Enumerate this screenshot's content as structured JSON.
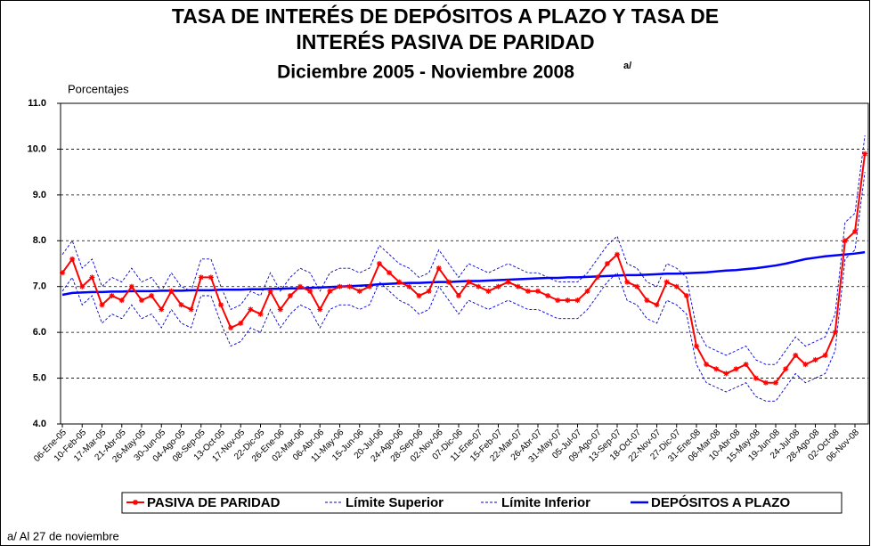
{
  "chart_data": {
    "type": "line",
    "title_lines": [
      "TASA DE INTERÉS DE DEPÓSITOS A PLAZO Y TASA DE",
      "INTERÉS PASIVA DE PARIDAD"
    ],
    "subtitle": "Diciembre 2005 - Noviembre 2008",
    "subtitle_note": "a/",
    "y_label": "Porcentajes",
    "footnote": "a/ Al 27 de noviembre",
    "categories": [
      "06-Ene-05",
      null,
      "10-Feb-05",
      null,
      "17-Mar-05",
      null,
      "21-Abr-05",
      null,
      "26-May-05",
      null,
      "30-Jun-05",
      null,
      "04-Ago-05",
      null,
      "08-Sep-05",
      null,
      "13-Oct-05",
      null,
      "17-Nov-05",
      null,
      "22-Dic-05",
      null,
      "26-Ene-06",
      null,
      "02-Mar-06",
      null,
      "06-Abr-06",
      null,
      "11-May-06",
      null,
      "15-Jun-06",
      null,
      "20-Jul-06",
      null,
      "24-Ago-06",
      null,
      "28-Sep-06",
      null,
      "02-Nov-06",
      null,
      "07-Dic-06",
      null,
      "11-Ene-07",
      null,
      "15-Feb-07",
      null,
      "22-Mar-07",
      null,
      "26-Abr-07",
      null,
      "31-May-07",
      null,
      "05-Jul-07",
      null,
      "09-Ago-07",
      null,
      "13-Sep-07",
      null,
      "18-Oct-07",
      null,
      "22-Nov-07",
      null,
      "27-Dic-07",
      null,
      "31-Ene-08",
      null,
      "06-Mar-08",
      null,
      "10-Abr-08",
      null,
      "15-May-08",
      null,
      "19-Jun-08",
      null,
      "24-Jul-08",
      null,
      "28-Ago-08",
      null,
      "02-Oct-08",
      null,
      "06-Nov-08",
      null
    ],
    "series": [
      {
        "name": "PASIVA DE PARIDAD",
        "color": "#ff0000",
        "line_style": "solid",
        "marker": "star",
        "values": [
          7.3,
          7.6,
          7.0,
          7.2,
          6.6,
          6.8,
          6.7,
          7.0,
          6.7,
          6.8,
          6.5,
          6.9,
          6.6,
          6.5,
          7.2,
          7.2,
          6.6,
          6.1,
          6.2,
          6.5,
          6.4,
          6.9,
          6.5,
          6.8,
          7.0,
          6.9,
          6.5,
          6.9,
          7.0,
          7.0,
          6.9,
          7.0,
          7.5,
          7.3,
          7.1,
          7.0,
          6.8,
          6.9,
          7.4,
          7.1,
          6.8,
          7.1,
          7.0,
          6.9,
          7.0,
          7.1,
          7.0,
          6.9,
          6.9,
          6.8,
          6.7,
          6.7,
          6.7,
          6.9,
          7.2,
          7.5,
          7.7,
          7.1,
          7.0,
          6.7,
          6.6,
          7.1,
          7.0,
          6.8,
          5.7,
          5.3,
          5.2,
          5.1,
          5.2,
          5.3,
          5.0,
          4.9,
          4.9,
          5.2,
          5.5,
          5.3,
          5.4,
          5.5,
          6.0,
          8.0,
          8.2,
          9.9
        ]
      },
      {
        "name": "Límite Superior",
        "color": "#0000cc",
        "line_style": "dashed",
        "values": [
          7.7,
          8.0,
          7.4,
          7.6,
          7.0,
          7.2,
          7.1,
          7.4,
          7.1,
          7.2,
          6.9,
          7.3,
          7.0,
          6.9,
          7.6,
          7.6,
          7.0,
          6.5,
          6.6,
          6.9,
          6.8,
          7.3,
          6.9,
          7.2,
          7.4,
          7.3,
          6.9,
          7.3,
          7.4,
          7.4,
          7.3,
          7.4,
          7.9,
          7.7,
          7.5,
          7.4,
          7.2,
          7.3,
          7.8,
          7.5,
          7.2,
          7.5,
          7.4,
          7.3,
          7.4,
          7.5,
          7.4,
          7.3,
          7.3,
          7.2,
          7.1,
          7.1,
          7.1,
          7.3,
          7.6,
          7.9,
          8.1,
          7.5,
          7.4,
          7.1,
          7.0,
          7.5,
          7.4,
          7.2,
          6.1,
          5.7,
          5.6,
          5.5,
          5.6,
          5.7,
          5.4,
          5.3,
          5.3,
          5.6,
          5.9,
          5.7,
          5.8,
          5.9,
          6.4,
          8.4,
          8.6,
          10.3
        ]
      },
      {
        "name": "Límite Inferior",
        "color": "#0000cc",
        "line_style": "dashed",
        "values": [
          6.9,
          7.2,
          6.6,
          6.8,
          6.2,
          6.4,
          6.3,
          6.6,
          6.3,
          6.4,
          6.1,
          6.5,
          6.2,
          6.1,
          6.8,
          6.8,
          6.2,
          5.7,
          5.8,
          6.1,
          6.0,
          6.5,
          6.1,
          6.4,
          6.6,
          6.5,
          6.1,
          6.5,
          6.6,
          6.6,
          6.5,
          6.6,
          7.1,
          6.9,
          6.7,
          6.6,
          6.4,
          6.5,
          7.0,
          6.7,
          6.4,
          6.7,
          6.6,
          6.5,
          6.6,
          6.7,
          6.6,
          6.5,
          6.5,
          6.4,
          6.3,
          6.3,
          6.3,
          6.5,
          6.8,
          7.1,
          7.3,
          6.7,
          6.6,
          6.3,
          6.2,
          6.7,
          6.6,
          6.4,
          5.3,
          4.9,
          4.8,
          4.7,
          4.8,
          4.9,
          4.6,
          4.5,
          4.5,
          4.8,
          5.1,
          4.9,
          5.0,
          5.1,
          5.6,
          7.6,
          7.8,
          9.5
        ]
      },
      {
        "name": "DEPÓSITOS A PLAZO",
        "color": "#0000ff",
        "line_style": "thick",
        "values": [
          6.82,
          6.86,
          6.87,
          6.88,
          6.88,
          6.89,
          6.89,
          6.9,
          6.9,
          6.9,
          6.91,
          6.91,
          6.91,
          6.92,
          6.92,
          6.92,
          6.93,
          6.93,
          6.93,
          6.94,
          6.94,
          6.95,
          6.95,
          6.96,
          6.96,
          6.97,
          6.98,
          6.99,
          7.0,
          7.01,
          7.02,
          7.03,
          7.05,
          7.06,
          7.07,
          7.08,
          7.08,
          7.09,
          7.1,
          7.1,
          7.11,
          7.12,
          7.12,
          7.13,
          7.14,
          7.15,
          7.16,
          7.17,
          7.18,
          7.19,
          7.19,
          7.2,
          7.2,
          7.21,
          7.22,
          7.23,
          7.24,
          7.25,
          7.25,
          7.26,
          7.27,
          7.28,
          7.28,
          7.29,
          7.3,
          7.31,
          7.33,
          7.35,
          7.36,
          7.38,
          7.4,
          7.43,
          7.46,
          7.5,
          7.55,
          7.6,
          7.63,
          7.66,
          7.68,
          7.7,
          7.72,
          7.75
        ]
      }
    ],
    "ylim": [
      4,
      11
    ],
    "yticks": [
      {
        "value": 4,
        "label": "4.0"
      },
      {
        "value": 5,
        "label": "5.0"
      },
      {
        "value": 6,
        "label": "6.0"
      },
      {
        "value": 7,
        "label": "7.0"
      },
      {
        "value": 8,
        "label": "8.0"
      },
      {
        "value": 9,
        "label": "9.0"
      },
      {
        "value": 10,
        "label": "10.0"
      },
      {
        "value": 11,
        "label": "11.0"
      }
    ],
    "grid": true,
    "legend": "bottom"
  }
}
